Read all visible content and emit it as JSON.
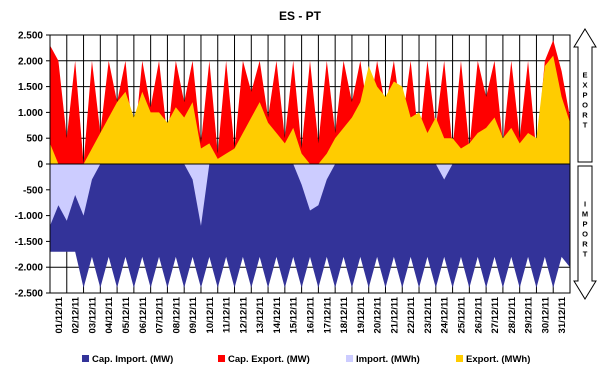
{
  "chart_data": {
    "type": "area",
    "title": "ES - PT",
    "xlabel": "",
    "ylabel": "",
    "ylim": [
      -2500,
      2500
    ],
    "yticks": [
      2500,
      2000,
      1500,
      1000,
      500,
      0,
      -500,
      -1000,
      -1500,
      -2000,
      -2500
    ],
    "ytick_labels": [
      "2.500",
      "2.000",
      "1.500",
      "1.000",
      "500",
      "0",
      "-500",
      "-1.000",
      "-1.500",
      "-2.000",
      "-2.500"
    ],
    "x_start": "01/12/11",
    "x_end": "01/01/12",
    "x_tick_labels": [
      "01/12/11",
      "02/12/11",
      "03/12/11",
      "04/12/11",
      "05/12/11",
      "06/12/11",
      "07/12/11",
      "08/12/11",
      "09/12/11",
      "10/12/11",
      "11/12/11",
      "12/12/11",
      "13/12/11",
      "14/12/11",
      "15/12/11",
      "16/12/11",
      "17/12/11",
      "18/12/11",
      "19/12/11",
      "20/12/11",
      "21/12/11",
      "22/12/11",
      "23/12/11",
      "24/12/11",
      "25/12/11",
      "26/12/11",
      "27/12/11",
      "28/12/11",
      "29/12/11",
      "30/12/11",
      "31/12/11"
    ],
    "grid": true,
    "legend_position": "bottom",
    "side_labels": {
      "top": "EXPORT",
      "bottom": "IMPORT"
    },
    "series": [
      {
        "name": "Cap. Import. (MW)",
        "color": "#333399",
        "kind": "area-negative",
        "x": [
          "01/12/11",
          "01/12/11 12:00",
          "02/12/11",
          "02/12/11 12:00",
          "03/12/11",
          "03/12/11 12:00",
          "04/12/11",
          "04/12/11 12:00",
          "05/12/11",
          "05/12/11 12:00",
          "06/12/11",
          "06/12/11 12:00",
          "07/12/11",
          "07/12/11 12:00",
          "08/12/11",
          "08/12/11 12:00",
          "09/12/11",
          "09/12/11 12:00",
          "10/12/11",
          "10/12/11 12:00",
          "11/12/11",
          "11/12/11 12:00",
          "12/12/11",
          "12/12/11 12:00",
          "13/12/11",
          "13/12/11 12:00",
          "14/12/11",
          "14/12/11 12:00",
          "15/12/11",
          "15/12/11 12:00",
          "16/12/11",
          "16/12/11 12:00",
          "17/12/11",
          "17/12/11 12:00",
          "18/12/11",
          "18/12/11 12:00",
          "19/12/11",
          "19/12/11 12:00",
          "20/12/11",
          "20/12/11 12:00",
          "21/12/11",
          "21/12/11 12:00",
          "22/12/11",
          "22/12/11 12:00",
          "23/12/11",
          "23/12/11 12:00",
          "24/12/11",
          "24/12/11 12:00",
          "25/12/11",
          "25/12/11 12:00",
          "26/12/11",
          "26/12/11 12:00",
          "27/12/11",
          "27/12/11 12:00",
          "28/12/11",
          "28/12/11 12:00",
          "29/12/11",
          "29/12/11 12:00",
          "30/12/11",
          "30/12/11 12:00",
          "31/12/11",
          "31/12/11 12:00",
          "01/01/12"
        ],
        "values": [
          -1700,
          -1700,
          -1700,
          -1700,
          -2400,
          -1800,
          -2400,
          -1800,
          -2400,
          -1800,
          -2400,
          -1800,
          -2400,
          -1800,
          -2400,
          -1800,
          -2400,
          -1800,
          -2400,
          -1800,
          -2400,
          -1800,
          -2400,
          -1800,
          -2400,
          -1800,
          -2400,
          -1800,
          -2400,
          -1800,
          -2400,
          -1800,
          -2400,
          -1800,
          -2400,
          -1800,
          -2400,
          -1800,
          -2400,
          -1800,
          -2400,
          -1800,
          -2400,
          -1800,
          -2400,
          -1800,
          -2400,
          -1800,
          -2400,
          -1800,
          -2400,
          -1800,
          -2400,
          -1800,
          -2400,
          -1800,
          -2400,
          -1800,
          -2400,
          -1800,
          -2400,
          -1800,
          -2000
        ]
      },
      {
        "name": "Cap. Export. (MW)",
        "color": "#ff0000",
        "kind": "area-positive",
        "x": [
          "01/12/11",
          "01/12/11 12:00",
          "02/12/11",
          "02/12/11 12:00",
          "03/12/11",
          "03/12/11 12:00",
          "04/12/11",
          "04/12/11 12:00",
          "05/12/11",
          "05/12/11 12:00",
          "06/12/11",
          "06/12/11 12:00",
          "07/12/11",
          "07/12/11 12:00",
          "08/12/11",
          "08/12/11 12:00",
          "09/12/11",
          "09/12/11 12:00",
          "10/12/11",
          "10/12/11 12:00",
          "11/12/11",
          "11/12/11 12:00",
          "12/12/11",
          "12/12/11 12:00",
          "13/12/11",
          "13/12/11 12:00",
          "14/12/11",
          "14/12/11 12:00",
          "15/12/11",
          "15/12/11 12:00",
          "16/12/11",
          "16/12/11 12:00",
          "17/12/11",
          "17/12/11 12:00",
          "18/12/11",
          "18/12/11 12:00",
          "19/12/11",
          "19/12/11 12:00",
          "20/12/11",
          "20/12/11 12:00",
          "21/12/11",
          "21/12/11 12:00",
          "22/12/11",
          "22/12/11 12:00",
          "23/12/11",
          "23/12/11 12:00",
          "24/12/11",
          "24/12/11 12:00",
          "25/12/11",
          "25/12/11 12:00",
          "26/12/11",
          "26/12/11 12:00",
          "27/12/11",
          "27/12/11 12:00",
          "28/12/11",
          "28/12/11 12:00",
          "29/12/11",
          "29/12/11 12:00",
          "30/12/11",
          "30/12/11 12:00",
          "31/12/11",
          "31/12/11 12:00",
          "01/01/12"
        ],
        "values": [
          2300,
          2000,
          500,
          2000,
          0,
          2000,
          600,
          2000,
          1200,
          2000,
          300,
          2000,
          1100,
          2000,
          500,
          2000,
          1200,
          2000,
          400,
          2000,
          200,
          2000,
          300,
          2000,
          1400,
          2000,
          900,
          2000,
          500,
          2000,
          300,
          2000,
          400,
          2000,
          600,
          2000,
          1200,
          2000,
          900,
          2000,
          1100,
          2000,
          800,
          2000,
          400,
          2000,
          700,
          2000,
          300,
          2000,
          300,
          2000,
          1300,
          2000,
          400,
          2000,
          500,
          2000,
          200,
          2000,
          2400,
          1800,
          900
        ]
      },
      {
        "name": "Import. (MWh)",
        "color": "#ccccff",
        "kind": "area-negative",
        "x": [
          "01/12/11",
          "01/12/11 12:00",
          "02/12/11",
          "02/12/11 12:00",
          "03/12/11",
          "03/12/11 12:00",
          "04/12/11",
          "04/12/11 12:00",
          "05/12/11",
          "05/12/11 12:00",
          "06/12/11",
          "06/12/11 12:00",
          "07/12/11",
          "07/12/11 12:00",
          "08/12/11",
          "08/12/11 12:00",
          "09/12/11",
          "09/12/11 12:00",
          "10/12/11",
          "10/12/11 12:00",
          "11/12/11",
          "11/12/11 12:00",
          "12/12/11",
          "12/12/11 12:00",
          "13/12/11",
          "13/12/11 12:00",
          "14/12/11",
          "14/12/11 12:00",
          "15/12/11",
          "15/12/11 12:00",
          "16/12/11",
          "16/12/11 12:00",
          "17/12/11",
          "17/12/11 12:00",
          "18/12/11",
          "18/12/11 12:00",
          "19/12/11",
          "19/12/11 12:00",
          "20/12/11",
          "20/12/11 12:00",
          "21/12/11",
          "21/12/11 12:00",
          "22/12/11",
          "22/12/11 12:00",
          "23/12/11",
          "23/12/11 12:00",
          "24/12/11",
          "24/12/11 12:00",
          "25/12/11",
          "25/12/11 12:00",
          "26/12/11",
          "26/12/11 12:00",
          "27/12/11",
          "27/12/11 12:00",
          "28/12/11",
          "28/12/11 12:00",
          "29/12/11",
          "29/12/11 12:00",
          "30/12/11",
          "30/12/11 12:00",
          "31/12/11",
          "31/12/11 12:00",
          "01/01/12"
        ],
        "values": [
          -1200,
          -800,
          -1100,
          -600,
          -1000,
          -300,
          0,
          0,
          0,
          0,
          0,
          0,
          0,
          0,
          0,
          0,
          0,
          -300,
          -1200,
          0,
          0,
          0,
          0,
          0,
          0,
          0,
          0,
          0,
          0,
          0,
          -400,
          -900,
          -800,
          -300,
          0,
          0,
          0,
          0,
          0,
          0,
          0,
          0,
          0,
          0,
          0,
          0,
          0,
          -300,
          0,
          0,
          0,
          0,
          0,
          0,
          0,
          0,
          0,
          0,
          0,
          0,
          0,
          0,
          0
        ]
      },
      {
        "name": "Export. (MWh)",
        "color": "#ffcc00",
        "kind": "area-positive",
        "x": [
          "01/12/11",
          "01/12/11 12:00",
          "02/12/11",
          "02/12/11 12:00",
          "03/12/11",
          "03/12/11 12:00",
          "04/12/11",
          "04/12/11 12:00",
          "05/12/11",
          "05/12/11 12:00",
          "06/12/11",
          "06/12/11 12:00",
          "07/12/11",
          "07/12/11 12:00",
          "08/12/11",
          "08/12/11 12:00",
          "09/12/11",
          "09/12/11 12:00",
          "10/12/11",
          "10/12/11 12:00",
          "11/12/11",
          "11/12/11 12:00",
          "12/12/11",
          "12/12/11 12:00",
          "13/12/11",
          "13/12/11 12:00",
          "14/12/11",
          "14/12/11 12:00",
          "15/12/11",
          "15/12/11 12:00",
          "16/12/11",
          "16/12/11 12:00",
          "17/12/11",
          "17/12/11 12:00",
          "18/12/11",
          "18/12/11 12:00",
          "19/12/11",
          "19/12/11 12:00",
          "20/12/11",
          "20/12/11 12:00",
          "21/12/11",
          "21/12/11 12:00",
          "22/12/11",
          "22/12/11 12:00",
          "23/12/11",
          "23/12/11 12:00",
          "24/12/11",
          "24/12/11 12:00",
          "25/12/11",
          "25/12/11 12:00",
          "26/12/11",
          "26/12/11 12:00",
          "27/12/11",
          "27/12/11 12:00",
          "28/12/11",
          "28/12/11 12:00",
          "29/12/11",
          "29/12/11 12:00",
          "30/12/11",
          "30/12/11 12:00",
          "31/12/11",
          "31/12/11 12:00",
          "01/01/12"
        ],
        "values": [
          400,
          0,
          0,
          0,
          0,
          300,
          600,
          900,
          1200,
          1400,
          900,
          1400,
          1000,
          1000,
          800,
          1100,
          900,
          1200,
          300,
          400,
          100,
          200,
          300,
          600,
          900,
          1200,
          800,
          600,
          400,
          700,
          200,
          0,
          0,
          200,
          500,
          700,
          900,
          1200,
          1900,
          1500,
          1300,
          1600,
          1500,
          900,
          1000,
          600,
          900,
          500,
          500,
          300,
          400,
          600,
          700,
          900,
          500,
          700,
          400,
          600,
          500,
          1900,
          2100,
          1300,
          800
        ]
      }
    ]
  }
}
